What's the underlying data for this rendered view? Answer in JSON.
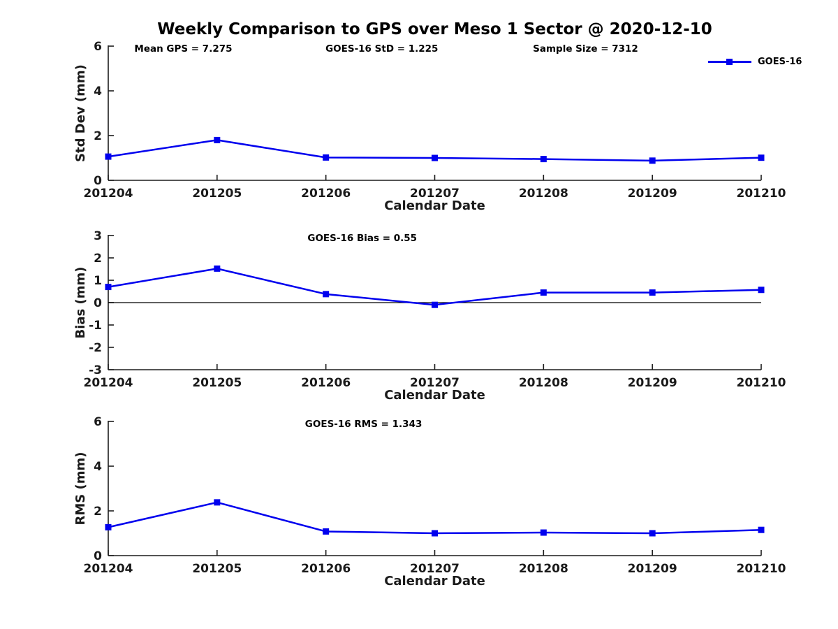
{
  "title": "Weekly Comparison to GPS over Meso 1 Sector @ 2020-12-10",
  "legend": {
    "label": "GOES-16",
    "marker": "square"
  },
  "colors": {
    "series": "#0000ee",
    "axis": "#1c1c1c",
    "text": "#1a1a1a",
    "annotation": "#000000",
    "zero_line": "#000000"
  },
  "chart_data": [
    {
      "type": "line",
      "title": "",
      "categories": [
        "201204",
        "201205",
        "201206",
        "201207",
        "201208",
        "201209",
        "201210"
      ],
      "series": [
        {
          "name": "GOES-16",
          "values": [
            1.06,
            1.8,
            1.02,
            1.0,
            0.95,
            0.88,
            1.01
          ]
        }
      ],
      "xlabel": "Calendar Date",
      "ylabel": "Std Dev (mm)",
      "ylim": [
        0,
        6
      ],
      "yticks": [
        0,
        2,
        4,
        6
      ],
      "grid": false,
      "zero_line": false,
      "legend_position": "top-right",
      "annotations": [
        {
          "text": "Mean GPS = 7.275",
          "align": "left",
          "xfrac": 0.04
        },
        {
          "text": "GOES-16 StD = 1.225",
          "align": "center",
          "xfrac": 0.419
        },
        {
          "text": "Sample Size = 7312",
          "align": "center",
          "xfrac": 0.731
        }
      ]
    },
    {
      "type": "line",
      "title": "",
      "categories": [
        "201204",
        "201205",
        "201206",
        "201207",
        "201208",
        "201209",
        "201210"
      ],
      "series": [
        {
          "name": "GOES-16",
          "values": [
            0.7,
            1.52,
            0.38,
            -0.1,
            0.45,
            0.45,
            0.57
          ]
        }
      ],
      "xlabel": "Calendar Date",
      "ylabel": "Bias (mm)",
      "ylim": [
        -3,
        3
      ],
      "yticks": [
        -3,
        -2,
        -1,
        0,
        1,
        2,
        3
      ],
      "grid": false,
      "zero_line": true,
      "annotations": [
        {
          "text": "GOES-16 Bias  = 0.55",
          "align": "center",
          "xfrac": 0.389
        }
      ]
    },
    {
      "type": "line",
      "title": "",
      "categories": [
        "201204",
        "201205",
        "201206",
        "201207",
        "201208",
        "201209",
        "201210"
      ],
      "series": [
        {
          "name": "GOES-16",
          "values": [
            1.27,
            2.38,
            1.08,
            1.0,
            1.03,
            1.0,
            1.15
          ]
        }
      ],
      "xlabel": "Calendar Date",
      "ylabel": "RMS (mm)",
      "ylim": [
        0,
        6
      ],
      "yticks": [
        0,
        2,
        4,
        6
      ],
      "grid": false,
      "zero_line": false,
      "annotations": [
        {
          "text": "GOES-16 RMS = 1.343",
          "align": "center",
          "xfrac": 0.391
        }
      ]
    }
  ]
}
